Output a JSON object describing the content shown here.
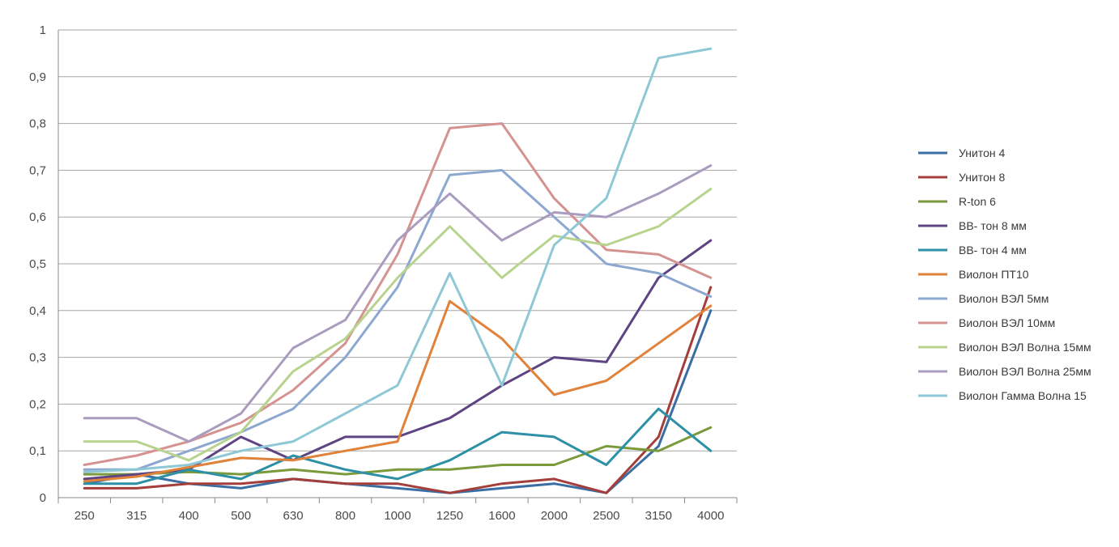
{
  "chart_data": {
    "type": "line",
    "title": "",
    "xlabel": "",
    "ylabel": "",
    "ylim": [
      0,
      1
    ],
    "grid": true,
    "legend_position": "right",
    "x": [
      "250",
      "315",
      "400",
      "500",
      "630",
      "800",
      "1000",
      "1250",
      "1600",
      "2000",
      "2500",
      "3150",
      "4000"
    ],
    "y_ticks": [
      "0",
      "0,1",
      "0,2",
      "0,3",
      "0,4",
      "0,5",
      "0,6",
      "0,7",
      "0,8",
      "0,9",
      "1"
    ],
    "series": [
      {
        "name": "Унитон 4",
        "color": "#3a6ea5",
        "values": [
          0.03,
          0.05,
          0.03,
          0.02,
          0.04,
          0.03,
          0.02,
          0.01,
          0.02,
          0.03,
          0.01,
          0.11,
          0.4
        ]
      },
      {
        "name": "Унитон 8",
        "color": "#a33e3b",
        "values": [
          0.02,
          0.02,
          0.03,
          0.03,
          0.04,
          0.03,
          0.03,
          0.01,
          0.03,
          0.04,
          0.01,
          0.13,
          0.45
        ]
      },
      {
        "name": "R-ton 6",
        "color": "#7a9a3c",
        "values": [
          0.05,
          0.05,
          0.055,
          0.05,
          0.06,
          0.05,
          0.06,
          0.06,
          0.07,
          0.07,
          0.11,
          0.1,
          0.15
        ]
      },
      {
        "name": "ВВ- тон 8 мм",
        "color": "#5e4483",
        "values": [
          0.04,
          0.05,
          0.06,
          0.13,
          0.08,
          0.13,
          0.13,
          0.17,
          0.24,
          0.3,
          0.29,
          0.47,
          0.55
        ]
      },
      {
        "name": "ВВ- тон 4 мм",
        "color": "#2e90a6",
        "values": [
          0.03,
          0.03,
          0.06,
          0.04,
          0.09,
          0.06,
          0.04,
          0.08,
          0.14,
          0.13,
          0.07,
          0.19,
          0.1
        ]
      },
      {
        "name": "Виолон ПТ10",
        "color": "#e0823a",
        "values": [
          0.035,
          0.045,
          0.065,
          0.085,
          0.08,
          0.1,
          0.12,
          0.42,
          0.34,
          0.22,
          0.25,
          0.33,
          0.41
        ]
      },
      {
        "name": "Виолон ВЭЛ 5мм",
        "color": "#8da8d0",
        "values": [
          0.06,
          0.06,
          0.1,
          0.14,
          0.19,
          0.3,
          0.45,
          0.69,
          0.7,
          0.6,
          0.5,
          0.48,
          0.43
        ]
      },
      {
        "name": "Виолон ВЭЛ 10мм",
        "color": "#d49290",
        "values": [
          0.07,
          0.09,
          0.12,
          0.16,
          0.23,
          0.33,
          0.52,
          0.79,
          0.8,
          0.64,
          0.53,
          0.52,
          0.47
        ]
      },
      {
        "name": "Виолон ВЭЛ Волна 15мм",
        "color": "#b8d38e",
        "values": [
          0.12,
          0.12,
          0.08,
          0.14,
          0.27,
          0.34,
          0.47,
          0.58,
          0.47,
          0.56,
          0.54,
          0.58,
          0.66
        ]
      },
      {
        "name": "Виолон ВЭЛ Волна 25мм",
        "color": "#a99cbe",
        "values": [
          0.17,
          0.17,
          0.12,
          0.18,
          0.32,
          0.38,
          0.55,
          0.65,
          0.55,
          0.61,
          0.6,
          0.65,
          0.71
        ]
      },
      {
        "name": "Виолон Гамма Волна 15",
        "color": "#8ec8d6",
        "values": [
          0.055,
          0.06,
          0.07,
          0.1,
          0.12,
          0.18,
          0.24,
          0.48,
          0.24,
          0.54,
          0.64,
          0.94,
          0.96
        ]
      }
    ]
  }
}
